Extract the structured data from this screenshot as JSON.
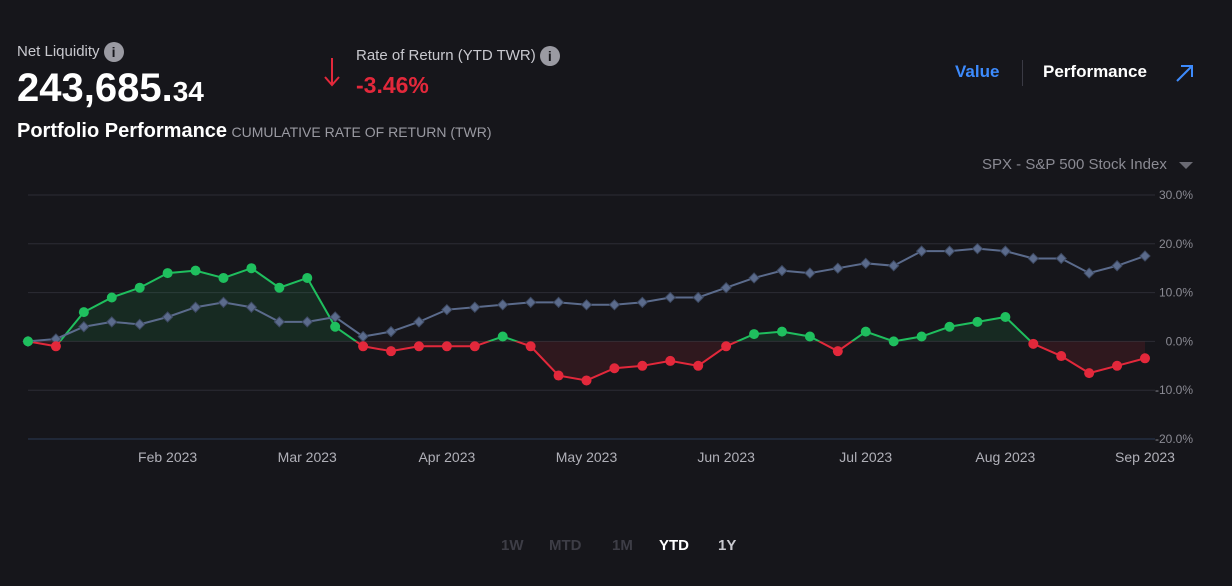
{
  "header": {
    "net_liquidity_label": "Net Liquidity",
    "net_liquidity_main": "243,685.",
    "net_liquidity_cents": "34",
    "return_label": "Rate of Return (YTD TWR)",
    "return_value": "-3.46%",
    "tabs": [
      "Value",
      "Performance"
    ],
    "active_tab": 0
  },
  "chart_data": {
    "type": "line",
    "title": "Portfolio Performance",
    "subtitle": "CUMULATIVE RATE OF RETURN (TWR)",
    "categories": [
      null,
      null,
      null,
      null,
      null,
      "Feb 2023",
      null,
      null,
      null,
      null,
      "Mar 2023",
      null,
      null,
      null,
      null,
      "Apr 2023",
      null,
      null,
      null,
      null,
      "May 2023",
      null,
      null,
      null,
      null,
      "Jun 2023",
      null,
      null,
      null,
      null,
      "Jul 2023",
      null,
      null,
      null,
      null,
      "Aug 2023",
      null,
      null,
      null,
      null,
      "Sep 2023"
    ],
    "series": [
      {
        "color_positive": "#1fbf5e",
        "color_negative": "#e3283b",
        "values": [
          0,
          -1,
          6,
          9,
          11,
          14,
          14.5,
          13,
          15,
          11,
          13,
          3,
          -1,
          -2,
          -1,
          -1,
          -1,
          1,
          -1,
          -7,
          -8,
          -5.5,
          -5,
          -4,
          -5,
          -1,
          1.5,
          2,
          1,
          -2,
          2,
          0,
          1,
          3,
          4,
          5,
          -0.5,
          -3,
          -6.5,
          -5,
          -3.46
        ]
      },
      {
        "name": "SPX - S&P 500 Stock Index",
        "color": "#5b6b8c",
        "values": [
          0,
          0.5,
          3,
          4,
          3.5,
          5,
          7,
          8,
          7,
          4,
          4,
          5,
          1,
          2,
          4,
          6.5,
          7,
          7.5,
          8,
          8,
          7.5,
          7.5,
          8,
          9,
          9,
          11,
          13,
          14.5,
          14,
          15,
          16,
          15.5,
          18.5,
          18.5,
          19,
          18.5,
          17,
          17,
          14,
          15.5,
          17.5
        ]
      }
    ],
    "ylim": [
      -20,
      30
    ],
    "yticks": [
      {
        "value": 30,
        "label": "30.0%"
      },
      {
        "value": 20,
        "label": "20.0%"
      },
      {
        "value": 10,
        "label": "10.0%"
      },
      {
        "value": 0,
        "label": "0.0%"
      },
      {
        "value": -10,
        "label": "-10.0%"
      },
      {
        "value": -20,
        "label": "-20.0%"
      }
    ],
    "grid": true,
    "ranges": [
      "1W",
      "MTD",
      "1M",
      "YTD",
      "1Y"
    ],
    "active_range": 3
  }
}
